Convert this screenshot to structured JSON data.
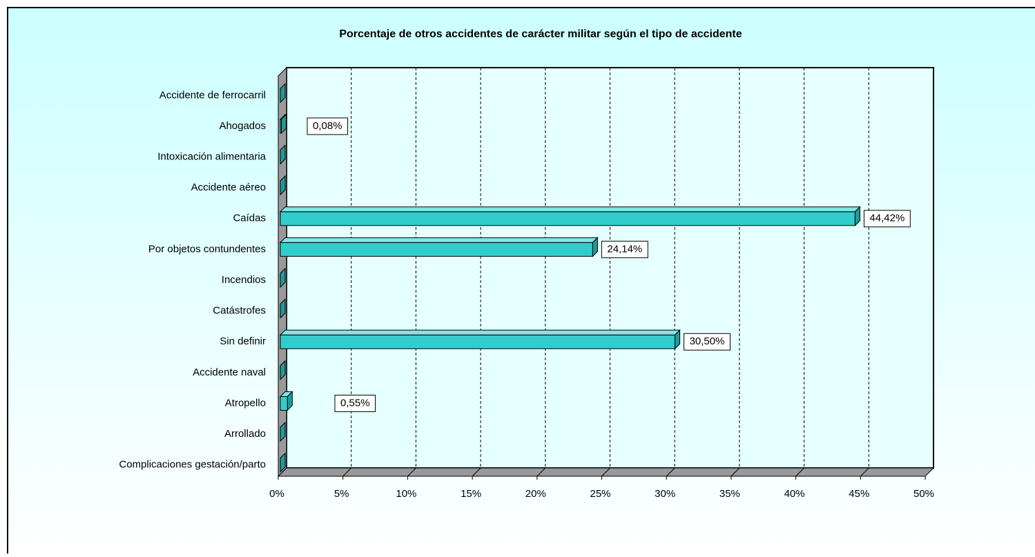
{
  "chart_data": {
    "type": "bar3d_horizontal",
    "title": "Porcentaje de otros accidentes de carácter militar según el tipo de accidente",
    "categories": [
      "Accidente de ferrocarril",
      "Ahogados",
      "Intoxicación alimentaria",
      "Accidente aéreo",
      "Caídas",
      "Por objetos contundentes",
      "Incendios",
      "Catástrofes",
      "Sin definir",
      "Accidente naval",
      "Atropello",
      "Arrollado",
      "Complicaciones gestación/parto"
    ],
    "values": [
      0,
      0.08,
      0,
      0,
      44.42,
      24.14,
      0,
      0,
      30.5,
      0,
      0.55,
      0,
      0
    ],
    "value_labels": [
      null,
      "0,08%",
      null,
      null,
      "44,42%",
      "24,14%",
      null,
      null,
      "30,50%",
      null,
      "0,55%",
      null,
      null
    ],
    "color": "#33cccc",
    "xlim": [
      0,
      50
    ],
    "xticks": [
      {
        "value": 0,
        "label": "0%"
      },
      {
        "value": 5,
        "label": "5%"
      },
      {
        "value": 10,
        "label": "10%"
      },
      {
        "value": 15,
        "label": "15%"
      },
      {
        "value": 20,
        "label": "20%"
      },
      {
        "value": 25,
        "label": "25%"
      },
      {
        "value": 30,
        "label": "30%"
      },
      {
        "value": 35,
        "label": "35%"
      },
      {
        "value": 40,
        "label": "40%"
      },
      {
        "value": 45,
        "label": "45%"
      },
      {
        "value": 50,
        "label": "50%"
      }
    ],
    "grid": true
  }
}
